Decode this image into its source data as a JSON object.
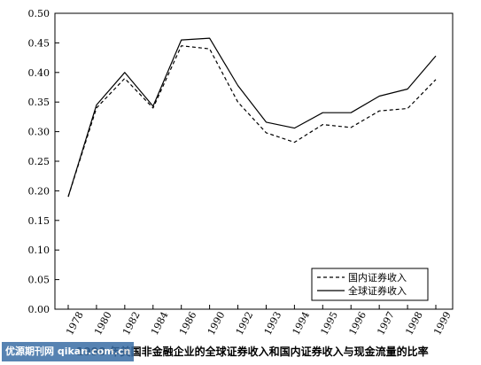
{
  "chart_data": {
    "type": "line",
    "categories": [
      "1978",
      "1980",
      "1982",
      "1984",
      "1986",
      "1990",
      "1992",
      "1993",
      "1994",
      "1995",
      "1996",
      "1997",
      "1998",
      "1999"
    ],
    "series": [
      {
        "name": "国内证券收入",
        "style": "dashed",
        "values": [
          0.19,
          0.34,
          0.39,
          0.34,
          0.445,
          0.44,
          0.35,
          0.298,
          0.282,
          0.312,
          0.307,
          0.335,
          0.339,
          0.388
        ]
      },
      {
        "name": "全球证券收入",
        "style": "solid",
        "values": [
          0.19,
          0.345,
          0.4,
          0.343,
          0.455,
          0.458,
          0.378,
          0.316,
          0.306,
          0.332,
          0.332,
          0.36,
          0.372,
          0.428
        ]
      }
    ],
    "ylim": [
      0.0,
      0.5
    ],
    "yticks": [
      "0.00",
      "0.05",
      "0.10",
      "0.15",
      "0.20",
      "0.25",
      "0.30",
      "0.35",
      "0.40",
      "0.45",
      "0.50"
    ],
    "grid": false,
    "legend": "bottom-right",
    "title": "1990 年美国非金融企业的全球证券收入和国内证券收入与现金流量的比率"
  },
  "watermark": "优源期刊网 qikan.com.cn",
  "colors": {
    "line": "#000000",
    "background": "#ffffff"
  }
}
